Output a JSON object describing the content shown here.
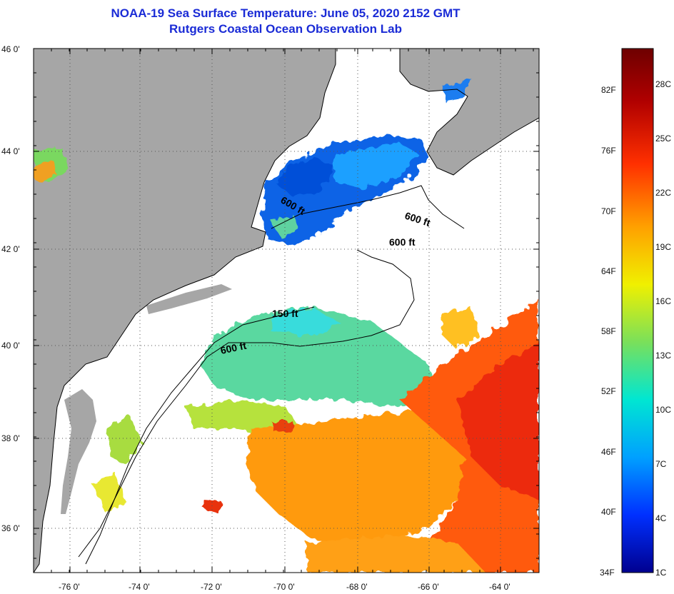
{
  "title": {
    "line1": "NOAA-19 Sea Surface Temperature:  June 05, 2020 2152 GMT",
    "line2": "Rutgers Coastal Ocean Observation Lab"
  },
  "map": {
    "lat_labels": [
      "46 0'",
      "44 0'",
      "42 0'",
      "40 0'",
      "38 0'",
      "36 0'"
    ],
    "lon_labels": [
      "-76 0'",
      "-74 0'",
      "-72 0'",
      "-70 0'",
      "-68 0'",
      "-66 0'",
      "-64 0'"
    ],
    "contour_labels": [
      "600 ft",
      "600 ft",
      "600 ft",
      "150 ft",
      "600 ft"
    ],
    "colors": {
      "land": "#a6a6a6",
      "no_data": "#ffffff",
      "coastline": "#000000"
    }
  },
  "colorbar": {
    "fahrenheit_labels": [
      "82F",
      "76F",
      "70F",
      "64F",
      "58F",
      "52F",
      "46F",
      "40F",
      "34F"
    ],
    "celsius_labels": [
      "28C",
      "25C",
      "22C",
      "19C",
      "16C",
      "13C",
      "10C",
      "7C",
      "4C",
      "1C"
    ],
    "gradient_stops": [
      "#00008f",
      "#0030ff",
      "#00a0ff",
      "#00e6d2",
      "#7ae05a",
      "#f0f000",
      "#ffa000",
      "#ff3000",
      "#b00000",
      "#6e0000"
    ]
  }
}
